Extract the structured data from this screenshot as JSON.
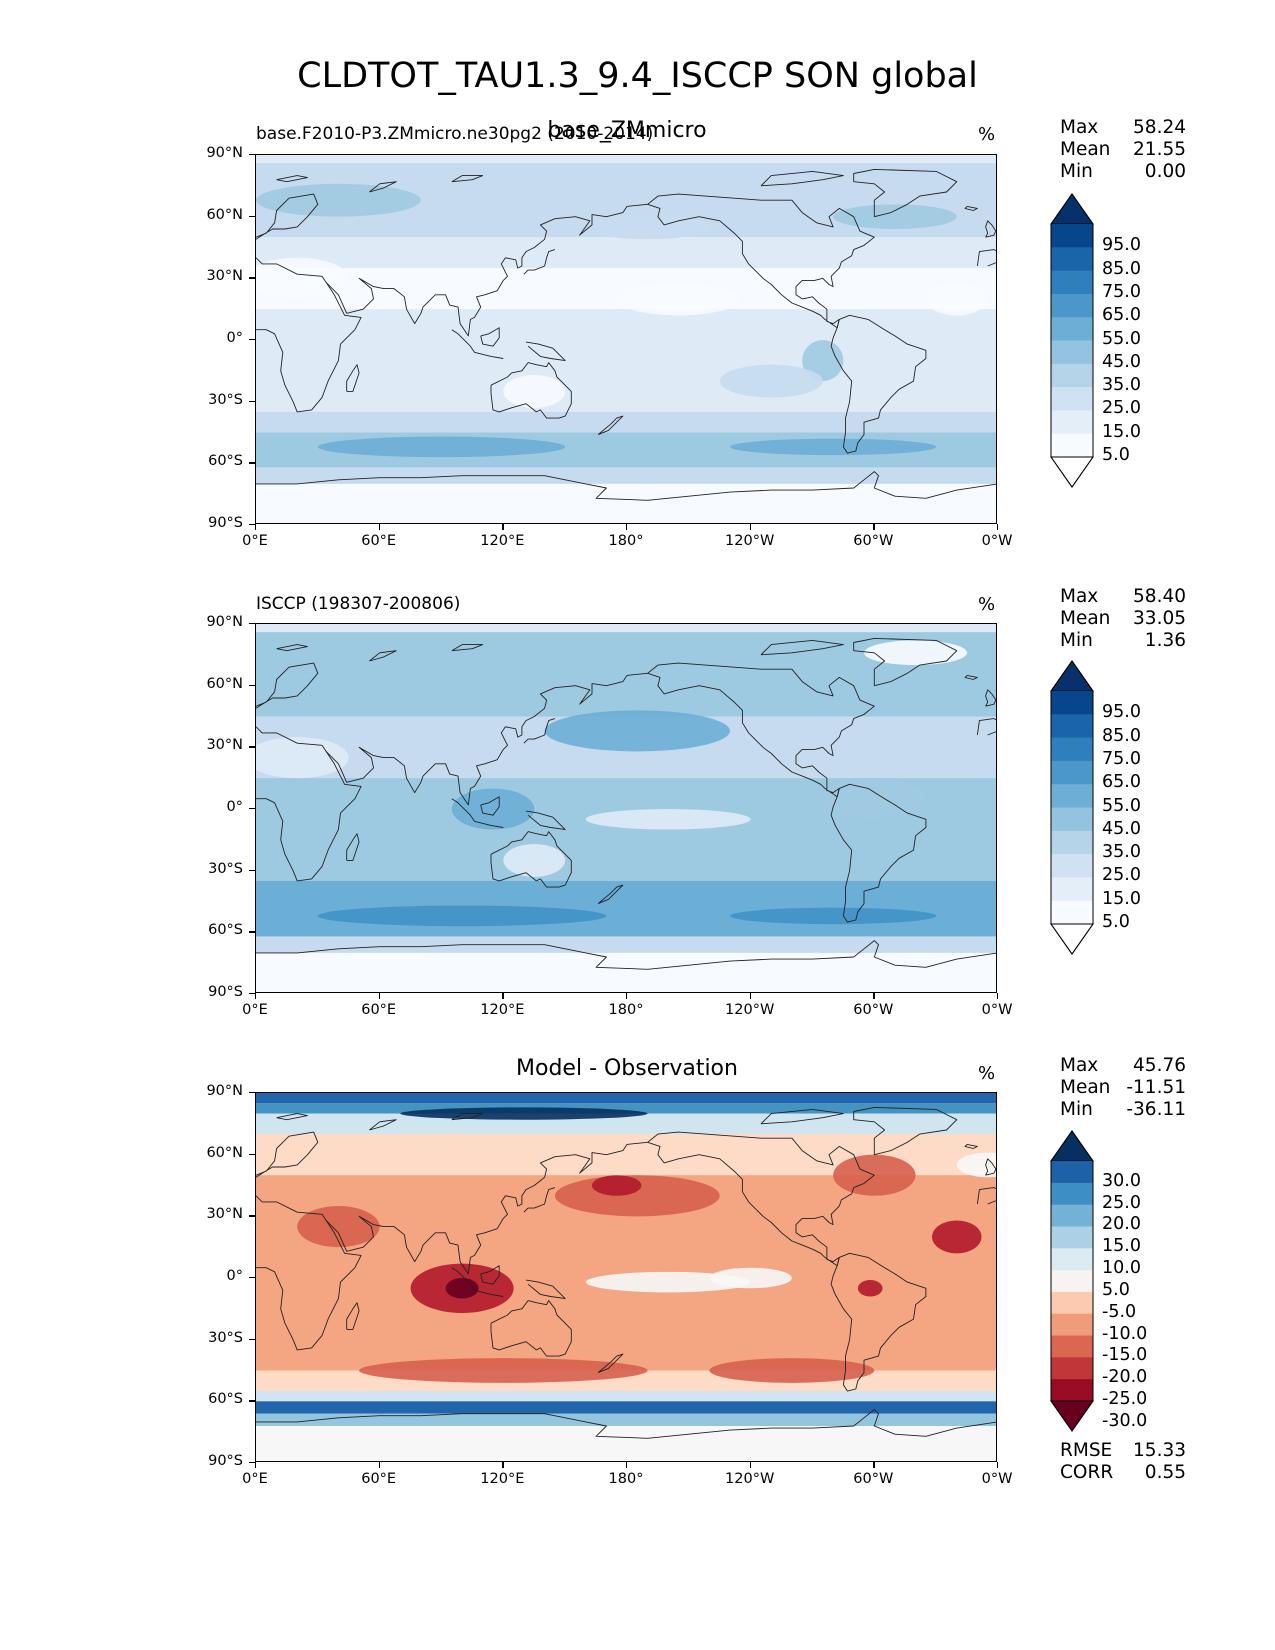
{
  "title": "CLDTOT_TAU1.3_9.4_ISCCP SON global",
  "unit": "%",
  "lat_ticks": [
    "90°N",
    "60°N",
    "30°N",
    "0°",
    "30°S",
    "60°S",
    "90°S"
  ],
  "lon_ticks": [
    "0°E",
    "60°E",
    "120°E",
    "180°",
    "120°W",
    "60°W",
    "0°W"
  ],
  "panels": [
    {
      "left_title": "base.F2010-P3.ZMmicro.ne30pg2 (2010-2014)",
      "center_title": "base_ZMmicro",
      "stats": [
        {
          "label": "Max",
          "value": "58.24"
        },
        {
          "label": "Mean",
          "value": "21.55"
        },
        {
          "label": "Min",
          "value": "0.00"
        }
      ],
      "cb_labels": [
        "95.0",
        "85.0",
        "75.0",
        "65.0",
        "55.0",
        "45.0",
        "35.0",
        "25.0",
        "15.0",
        "5.0"
      ]
    },
    {
      "left_title": "ISCCP (198307-200806)",
      "center_title": "",
      "stats": [
        {
          "label": "Max",
          "value": "58.40"
        },
        {
          "label": "Mean",
          "value": "33.05"
        },
        {
          "label": "Min",
          "value": "1.36"
        }
      ],
      "cb_labels": [
        "95.0",
        "85.0",
        "75.0",
        "65.0",
        "55.0",
        "45.0",
        "35.0",
        "25.0",
        "15.0",
        "5.0"
      ]
    },
    {
      "left_title": "",
      "center_title": "Model - Observation",
      "stats": [
        {
          "label": "Max",
          "value": "45.76"
        },
        {
          "label": "Mean",
          "value": "-11.51"
        },
        {
          "label": "Min",
          "value": "-36.11"
        }
      ],
      "cb_labels": [
        "30.0",
        "25.0",
        "20.0",
        "15.0",
        "10.0",
        "5.0",
        "-5.0",
        "-10.0",
        "-15.0",
        "-20.0",
        "-25.0",
        "-30.0"
      ],
      "extra_stats": [
        {
          "label": "RMSE",
          "value": "15.33"
        },
        {
          "label": "CORR",
          "value": "0.55"
        }
      ]
    }
  ],
  "colors": {
    "blues": [
      "#f7fbff",
      "#deebf7",
      "#c6dbef",
      "#9ecae1",
      "#6baed6",
      "#4292c6",
      "#2171b5",
      "#08519c",
      "#08306b"
    ],
    "diverging": [
      "#67001f",
      "#b2182b",
      "#d6604d",
      "#f4a582",
      "#fddbc7",
      "#f7f7f7",
      "#d1e5f0",
      "#92c5de",
      "#4393c3",
      "#2166ac",
      "#053061"
    ]
  }
}
